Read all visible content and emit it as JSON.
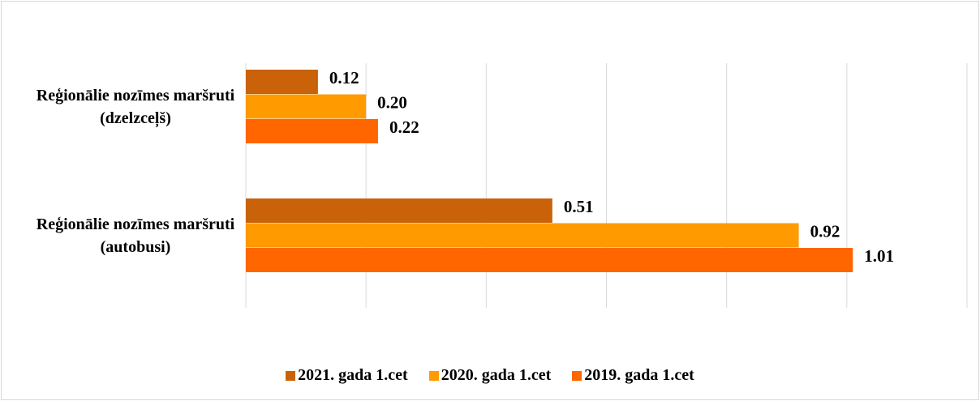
{
  "chart_data": {
    "type": "barh",
    "categories": [
      "Reģionālie nozīmes maršruti (dzelzceļš)",
      "Reģionālie nozīmes maršruti (autobusi)"
    ],
    "series": [
      {
        "name": "2021. gada 1.cet",
        "color": "#c96208",
        "values": [
          0.12,
          0.51
        ],
        "value_labels": [
          "0.12",
          "0.51"
        ]
      },
      {
        "name": "2020. gada 1.cet",
        "color": "#ff9a00",
        "values": [
          0.2,
          0.92
        ],
        "value_labels": [
          "0.20",
          "0.92"
        ]
      },
      {
        "name": "2019. gada 1.cet",
        "color": "#ff6600",
        "values": [
          0.22,
          1.01
        ],
        "value_labels": [
          "0.22",
          "1.01"
        ]
      }
    ],
    "xlim": [
      0,
      1.2
    ],
    "xticks": [
      0,
      0.2,
      0.4,
      0.6,
      0.8,
      1.0,
      1.2
    ],
    "grid": true,
    "legend": "bottom"
  }
}
